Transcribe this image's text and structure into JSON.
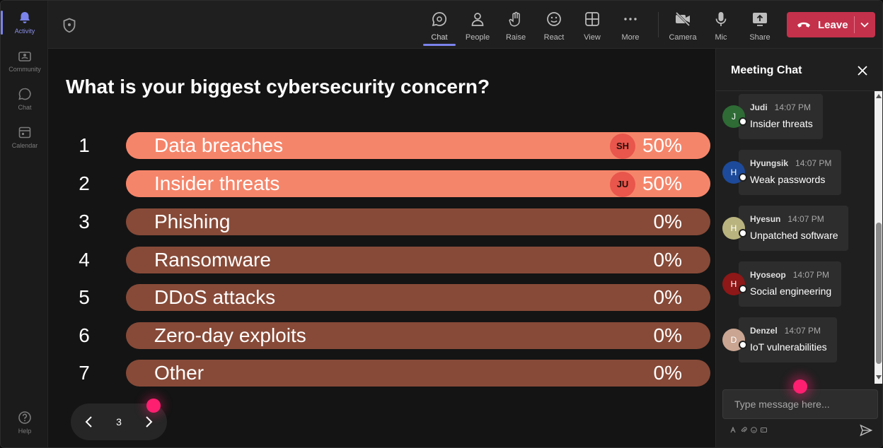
{
  "rail": {
    "items": [
      {
        "label": "Activity"
      },
      {
        "label": "Community"
      },
      {
        "label": "Chat"
      },
      {
        "label": "Calendar"
      },
      {
        "label": "Help"
      }
    ]
  },
  "toolbar": {
    "buttons": [
      {
        "label": "Chat",
        "icon": "chat-icon"
      },
      {
        "label": "People",
        "icon": "people-icon"
      },
      {
        "label": "Raise",
        "icon": "raise-hand-icon"
      },
      {
        "label": "React",
        "icon": "react-icon"
      },
      {
        "label": "View",
        "icon": "view-icon"
      },
      {
        "label": "More",
        "icon": "more-icon"
      },
      {
        "label": "Camera",
        "icon": "camera-off-icon"
      },
      {
        "label": "Mic",
        "icon": "mic-icon"
      },
      {
        "label": "Share",
        "icon": "share-icon"
      }
    ],
    "leave_label": "Leave",
    "leave_color": "#c4314b"
  },
  "poll": {
    "question": "What is your biggest cybersecurity concern?",
    "options": [
      {
        "num": "1",
        "label": "Data breaches",
        "percent": "50%",
        "fraction": 1.0,
        "voter": "SH"
      },
      {
        "num": "2",
        "label": "Insider threats",
        "percent": "50%",
        "fraction": 1.0,
        "voter": "JU"
      },
      {
        "num": "3",
        "label": "Phishing",
        "percent": "0%",
        "fraction": 0
      },
      {
        "num": "4",
        "label": "Ransomware",
        "percent": "0%",
        "fraction": 0
      },
      {
        "num": "5",
        "label": "DDoS attacks",
        "percent": "0%",
        "fraction": 0
      },
      {
        "num": "6",
        "label": "Zero-day exploits",
        "percent": "0%",
        "fraction": 0
      },
      {
        "num": "7",
        "label": "Other",
        "percent": "0%",
        "fraction": 0
      }
    ],
    "fill_color": "#f5856a",
    "track_color": "#874a38",
    "page": "3"
  },
  "chat": {
    "title": "Meeting Chat",
    "messages": [
      {
        "initial": "J",
        "name": "Judi",
        "time": "14:07 PM",
        "text": "Insider threats",
        "color": "#2e6b35"
      },
      {
        "initial": "H",
        "name": "Hyungsik",
        "time": "14:07 PM",
        "text": "Weak passwords",
        "color": "#1d4a9a"
      },
      {
        "initial": "H",
        "name": "Hyesun",
        "time": "14:07 PM",
        "text": "Unpatched software",
        "color": "#b9b47f"
      },
      {
        "initial": "H",
        "name": "Hyoseop",
        "time": "14:07 PM",
        "text": "Social engineering",
        "color": "#8e1717"
      },
      {
        "initial": "D",
        "name": "Denzel",
        "time": "14:07 PM",
        "text": "IoT vulnerabilities",
        "color": "#c9a592"
      }
    ],
    "compose_placeholder": "Type message here..."
  }
}
